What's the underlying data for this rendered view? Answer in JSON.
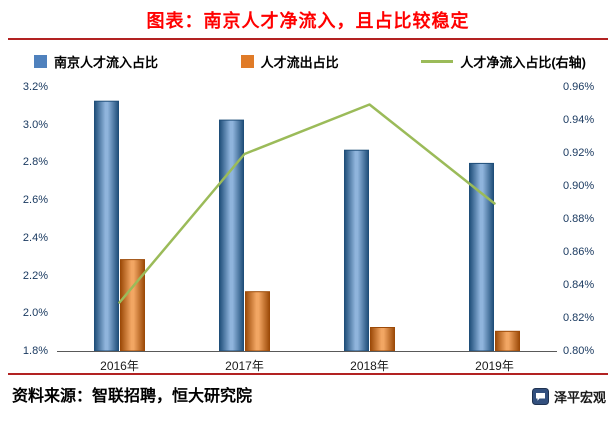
{
  "title": "图表：南京人才净流入，且占比较稳定",
  "colors": {
    "title": "#FF0000",
    "divider": "#B22222",
    "bar_inflow": "#4F81BD",
    "bar_inflow_edge": "#1F4E79",
    "bar_inflow_light": "#8FB4DC",
    "bar_outflow": "#E07B28",
    "bar_outflow_edge": "#9C4A08",
    "bar_outflow_light": "#F2A663",
    "line_net": "#9BBB59",
    "axis_line": "#595959",
    "tick_label": "#17375E"
  },
  "legend": [
    {
      "label": "南京人才流入占比",
      "type": "bar",
      "color": "#4F81BD"
    },
    {
      "label": "人才流出占比",
      "type": "bar",
      "color": "#E07B28"
    },
    {
      "label": "人才净流入占比(右轴)",
      "type": "line",
      "color": "#9BBB59"
    }
  ],
  "chart_data": {
    "type": "bar",
    "title": "图表：南京人才净流入，且占比较稳定",
    "categories": [
      "2016年",
      "2017年",
      "2018年",
      "2019年"
    ],
    "series": [
      {
        "name": "南京人才流入占比",
        "type": "bar",
        "axis": "left",
        "values": [
          3.13,
          3.03,
          2.87,
          2.8
        ]
      },
      {
        "name": "人才流出占比",
        "type": "bar",
        "axis": "left",
        "values": [
          2.29,
          2.12,
          1.93,
          1.91
        ]
      },
      {
        "name": "人才净流入占比(右轴)",
        "type": "line",
        "axis": "right",
        "values": [
          0.83,
          0.92,
          0.95,
          0.89
        ]
      }
    ],
    "left_axis": {
      "min": 1.8,
      "max": 3.2,
      "ticks": [
        "3.2%",
        "3.0%",
        "2.8%",
        "2.6%",
        "2.4%",
        "2.2%",
        "2.0%",
        "1.8%"
      ]
    },
    "right_axis": {
      "min": 0.8,
      "max": 0.96,
      "ticks": [
        "0.96%",
        "0.94%",
        "0.92%",
        "0.90%",
        "0.88%",
        "0.86%",
        "0.84%",
        "0.82%",
        "0.80%"
      ]
    },
    "grid": false,
    "legend_position": "top",
    "xlabel": "",
    "ylabel": ""
  },
  "footer": {
    "source": "资料来源：智联招聘，恒大研究院",
    "brand": "泽平宏观"
  }
}
